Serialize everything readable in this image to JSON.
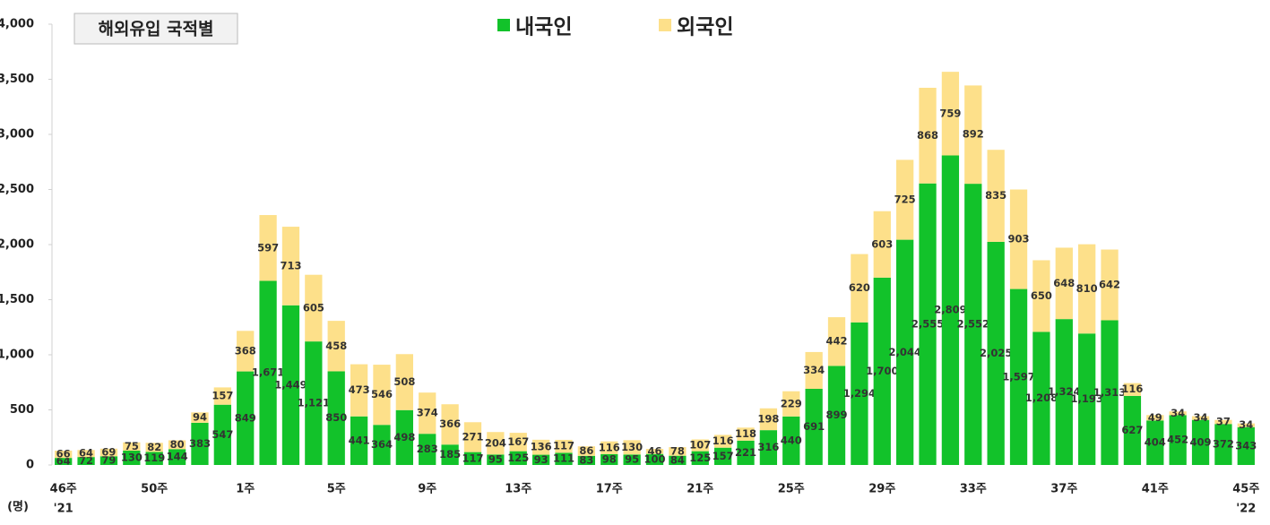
{
  "chart_data": {
    "type": "stacked_bar",
    "title": "해외유입 국적별",
    "y_axis_label": "(명)",
    "annotations": [
      "'21",
      "'22"
    ],
    "categories": [
      "46주",
      null,
      null,
      null,
      "50주",
      null,
      null,
      null,
      "1주",
      null,
      null,
      null,
      "5주",
      null,
      null,
      null,
      "9주",
      null,
      null,
      null,
      "13주",
      null,
      null,
      null,
      "17주",
      null,
      null,
      null,
      "21주",
      null,
      null,
      null,
      "25주",
      null,
      null,
      null,
      "29주",
      null,
      null,
      null,
      "33주",
      null,
      null,
      null,
      "37주",
      null,
      null,
      null,
      "41주",
      null,
      null,
      null,
      "45주"
    ],
    "series": [
      {
        "name": "내국인",
        "color": "#12c22a",
        "values": [
          64,
          72,
          79,
          130,
          119,
          144,
          383,
          547,
          849,
          1671,
          1449,
          1121,
          850,
          441,
          364,
          498,
          283,
          185,
          117,
          95,
          125,
          93,
          111,
          83,
          98,
          95,
          100,
          84,
          125,
          157,
          221,
          316,
          440,
          691,
          899,
          1294,
          1700,
          2044,
          2555,
          2809,
          2552,
          2025,
          1597,
          1208,
          1324,
          1193,
          1313,
          627,
          404,
          452,
          409,
          372,
          343
        ],
        "value_labels": [
          "64",
          "72",
          "79",
          "130",
          "119",
          "144",
          "383",
          "547",
          "849",
          "1,671",
          "1,449",
          "1,121",
          "850",
          "441",
          "364",
          "498",
          "283",
          "185",
          "117",
          "95",
          "125",
          "93",
          "111",
          "83",
          "98",
          "95",
          "100",
          "84",
          "125",
          "157",
          "221",
          "316",
          "440",
          "691",
          "899",
          "1,294",
          "1,700",
          "2,044",
          "2,555",
          "2,809",
          "2,552",
          "2,025",
          "1,597",
          "1,208",
          "1,324",
          "1,193",
          "1,313",
          "627",
          "404",
          "452",
          "409",
          "372",
          "343"
        ]
      },
      {
        "name": "외국인",
        "color": "#fde08a",
        "values": [
          66,
          64,
          69,
          75,
          82,
          80,
          94,
          157,
          368,
          597,
          713,
          605,
          458,
          473,
          546,
          508,
          374,
          366,
          271,
          204,
          167,
          136,
          117,
          86,
          116,
          130,
          46,
          78,
          107,
          116,
          118,
          198,
          229,
          334,
          442,
          620,
          603,
          725,
          868,
          759,
          892,
          835,
          903,
          650,
          648,
          810,
          642,
          116,
          49,
          34,
          34,
          37,
          34
        ]
      }
    ],
    "ylim": [
      0,
      4000
    ],
    "yticks": [
      0,
      500,
      {
        "value": 1000,
        "label": "1,000"
      },
      {
        "value": 1500,
        "label": "1,500"
      },
      {
        "value": 2000,
        "label": "2,000"
      },
      {
        "value": 2500,
        "label": "2,500"
      },
      {
        "value": 3000,
        "label": "3,000"
      },
      {
        "value": 3500,
        "label": "3,500"
      },
      {
        "value": 4000,
        "label": "4,000"
      }
    ]
  }
}
